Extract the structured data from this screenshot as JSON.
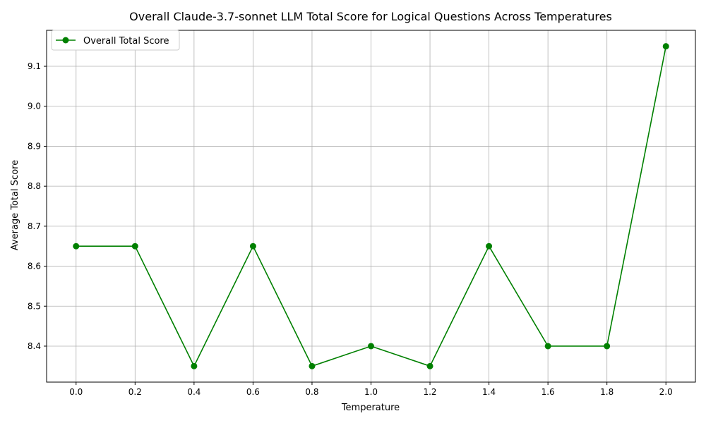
{
  "chart_data": {
    "type": "line",
    "title": "Overall Claude-3.7-sonnet LLM Total Score for  Logical Questions Across Temperatures",
    "xlabel": "Temperature",
    "ylabel": "Average Total Score",
    "x": [
      0.0,
      0.2,
      0.4,
      0.6,
      0.8,
      1.0,
      1.2,
      1.4,
      1.6,
      1.8,
      2.0
    ],
    "x_tick_labels": [
      "0.0",
      "0.2",
      "0.4",
      "0.6",
      "0.8",
      "1.0",
      "1.2",
      "1.4",
      "1.6",
      "1.8",
      "2.0"
    ],
    "y_ticks": [
      8.4,
      8.5,
      8.6,
      8.7,
      8.8,
      8.9,
      9.0,
      9.1
    ],
    "y_tick_labels": [
      "8.4",
      "8.5",
      "8.6",
      "8.7",
      "8.8",
      "8.9",
      "9.0",
      "9.1"
    ],
    "xlim": [
      -0.1,
      2.1
    ],
    "ylim": [
      8.31,
      9.19
    ],
    "grid": true,
    "legend": "top-left",
    "series": [
      {
        "name": "Overall Total Score",
        "color": "#008000",
        "marker": "circle",
        "values": [
          8.65,
          8.65,
          8.35,
          8.65,
          8.35,
          8.4,
          8.35,
          8.65,
          8.4,
          8.4,
          9.15
        ]
      }
    ]
  }
}
